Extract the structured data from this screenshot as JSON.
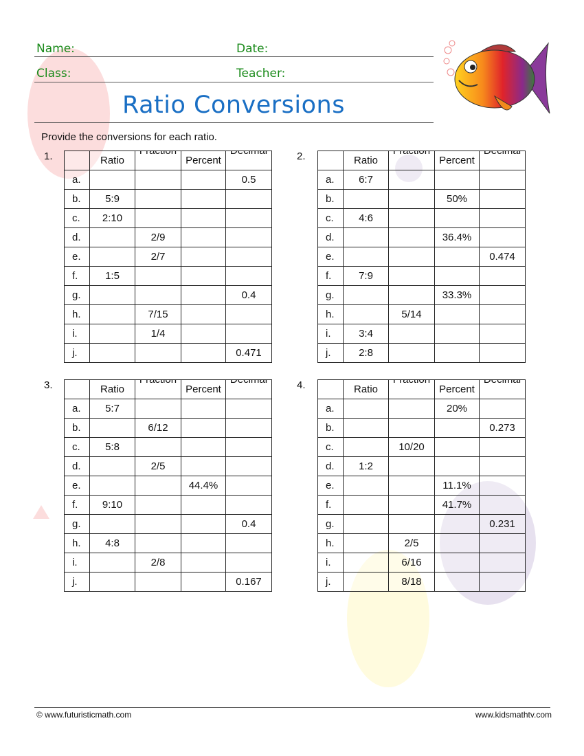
{
  "header": {
    "name_label": "Name:",
    "date_label": "Date:",
    "class_label": "Class:",
    "teacher_label": "Teacher:"
  },
  "title": "Ratio Conversions",
  "instructions": "Provide the conversions for each ratio.",
  "columns": [
    "",
    "Ratio",
    "Fraction",
    "Percent",
    "Decimal"
  ],
  "problems": [
    {
      "number": "1.",
      "rows": [
        [
          "a.",
          "",
          "",
          "",
          "0.5"
        ],
        [
          "b.",
          "5:9",
          "",
          "",
          ""
        ],
        [
          "c.",
          "2:10",
          "",
          "",
          ""
        ],
        [
          "d.",
          "",
          "2/9",
          "",
          ""
        ],
        [
          "e.",
          "",
          "2/7",
          "",
          ""
        ],
        [
          "f.",
          "1:5",
          "",
          "",
          ""
        ],
        [
          "g.",
          "",
          "",
          "",
          "0.4"
        ],
        [
          "h.",
          "",
          "7/15",
          "",
          ""
        ],
        [
          "i.",
          "",
          "1/4",
          "",
          ""
        ],
        [
          "j.",
          "",
          "",
          "",
          "0.471"
        ]
      ]
    },
    {
      "number": "2.",
      "rows": [
        [
          "a.",
          "6:7",
          "",
          "",
          ""
        ],
        [
          "b.",
          "",
          "",
          "50%",
          ""
        ],
        [
          "c.",
          "4:6",
          "",
          "",
          ""
        ],
        [
          "d.",
          "",
          "",
          "36.4%",
          ""
        ],
        [
          "e.",
          "",
          "",
          "",
          "0.474"
        ],
        [
          "f.",
          "7:9",
          "",
          "",
          ""
        ],
        [
          "g.",
          "",
          "",
          "33.3%",
          ""
        ],
        [
          "h.",
          "",
          "5/14",
          "",
          ""
        ],
        [
          "i.",
          "3:4",
          "",
          "",
          ""
        ],
        [
          "j.",
          "2:8",
          "",
          "",
          ""
        ]
      ]
    },
    {
      "number": "3.",
      "rows": [
        [
          "a.",
          "5:7",
          "",
          "",
          ""
        ],
        [
          "b.",
          "",
          "6/12",
          "",
          ""
        ],
        [
          "c.",
          "5:8",
          "",
          "",
          ""
        ],
        [
          "d.",
          "",
          "2/5",
          "",
          ""
        ],
        [
          "e.",
          "",
          "",
          "44.4%",
          ""
        ],
        [
          "f.",
          "9:10",
          "",
          "",
          ""
        ],
        [
          "g.",
          "",
          "",
          "",
          "0.4"
        ],
        [
          "h.",
          "4:8",
          "",
          "",
          ""
        ],
        [
          "i.",
          "",
          "2/8",
          "",
          ""
        ],
        [
          "j.",
          "",
          "",
          "",
          "0.167"
        ]
      ]
    },
    {
      "number": "4.",
      "rows": [
        [
          "a.",
          "",
          "",
          "20%",
          ""
        ],
        [
          "b.",
          "",
          "",
          "",
          "0.273"
        ],
        [
          "c.",
          "",
          "10/20",
          "",
          ""
        ],
        [
          "d.",
          "1:2",
          "",
          "",
          ""
        ],
        [
          "e.",
          "",
          "",
          "11.1%",
          ""
        ],
        [
          "f.",
          "",
          "",
          "41.7%",
          ""
        ],
        [
          "g.",
          "",
          "",
          "",
          "0.231"
        ],
        [
          "h.",
          "",
          "2/5",
          "",
          ""
        ],
        [
          "i.",
          "",
          "6/16",
          "",
          ""
        ],
        [
          "j.",
          "",
          "8/18",
          "",
          ""
        ]
      ]
    }
  ],
  "footer": {
    "left": "© www.futuristicmath.com",
    "right": "www.kidsmathtv.com"
  },
  "colors": {
    "header_text": "#1a8a1a",
    "title": "#1a6fc4"
  }
}
